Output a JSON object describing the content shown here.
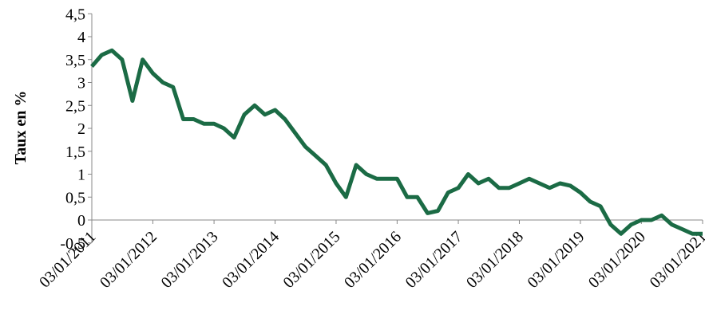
{
  "chart_data": {
    "type": "line",
    "y_label": "Taux en %",
    "x": [
      "03/01/2011",
      "03/03/2011",
      "03/05/2011",
      "03/07/2011",
      "03/09/2011",
      "03/11/2011",
      "03/01/2012",
      "03/03/2012",
      "03/05/2012",
      "03/07/2012",
      "03/09/2012",
      "03/11/2012",
      "03/01/2013",
      "03/03/2013",
      "03/05/2013",
      "03/07/2013",
      "03/09/2013",
      "03/11/2013",
      "03/01/2014",
      "03/03/2014",
      "03/05/2014",
      "03/07/2014",
      "03/09/2014",
      "03/11/2014",
      "03/01/2015",
      "03/03/2015",
      "03/05/2015",
      "03/07/2015",
      "03/09/2015",
      "03/11/2015",
      "03/01/2016",
      "03/03/2016",
      "03/05/2016",
      "03/07/2016",
      "03/09/2016",
      "03/11/2016",
      "03/01/2017",
      "03/03/2017",
      "03/05/2017",
      "03/07/2017",
      "03/09/2017",
      "03/11/2017",
      "03/01/2018",
      "03/03/2018",
      "03/05/2018",
      "03/07/2018",
      "03/09/2018",
      "03/11/2018",
      "03/01/2019",
      "03/03/2019",
      "03/05/2019",
      "03/07/2019",
      "03/09/2019",
      "03/11/2019",
      "03/01/2020",
      "03/03/2020",
      "03/05/2020",
      "03/07/2020",
      "03/09/2020",
      "03/11/2020",
      "03/01/2021"
    ],
    "series": [
      {
        "name": "Taux",
        "color": "#1b6b45",
        "values": [
          3.35,
          3.6,
          3.7,
          3.5,
          2.6,
          3.5,
          3.2,
          3.0,
          2.9,
          2.2,
          2.2,
          2.1,
          2.1,
          2.0,
          1.8,
          2.3,
          2.5,
          2.3,
          2.4,
          2.2,
          1.9,
          1.6,
          1.4,
          1.2,
          0.8,
          0.5,
          1.2,
          1.0,
          0.9,
          0.9,
          0.9,
          0.5,
          0.5,
          0.15,
          0.2,
          0.6,
          0.7,
          1.0,
          0.8,
          0.9,
          0.7,
          0.7,
          0.8,
          0.9,
          0.8,
          0.7,
          0.8,
          0.75,
          0.6,
          0.4,
          0.3,
          -0.1,
          -0.3,
          -0.1,
          0.0,
          0.0,
          0.1,
          -0.1,
          -0.2,
          -0.3,
          -0.3
        ]
      }
    ],
    "xlim": [
      "03/01/2011",
      "03/01/2021"
    ],
    "xticks": [
      "03/01/2011",
      "03/01/2012",
      "03/01/2013",
      "03/01/2014",
      "03/01/2015",
      "03/01/2016",
      "03/01/2017",
      "03/01/2018",
      "03/01/2019",
      "03/01/2020",
      "03/01/2021"
    ],
    "ylim": [
      -0.5,
      4.5
    ],
    "yticks": [
      {
        "value": -0.5,
        "label": "-0,5"
      },
      0,
      {
        "value": 0.5,
        "label": "0,5"
      },
      1,
      {
        "value": 1.5,
        "label": "1,5"
      },
      2,
      {
        "value": 2.5,
        "label": "2,5"
      },
      3,
      {
        "value": 3.5,
        "label": "3,5"
      },
      4,
      {
        "value": 4.5,
        "label": "4,5"
      }
    ]
  }
}
